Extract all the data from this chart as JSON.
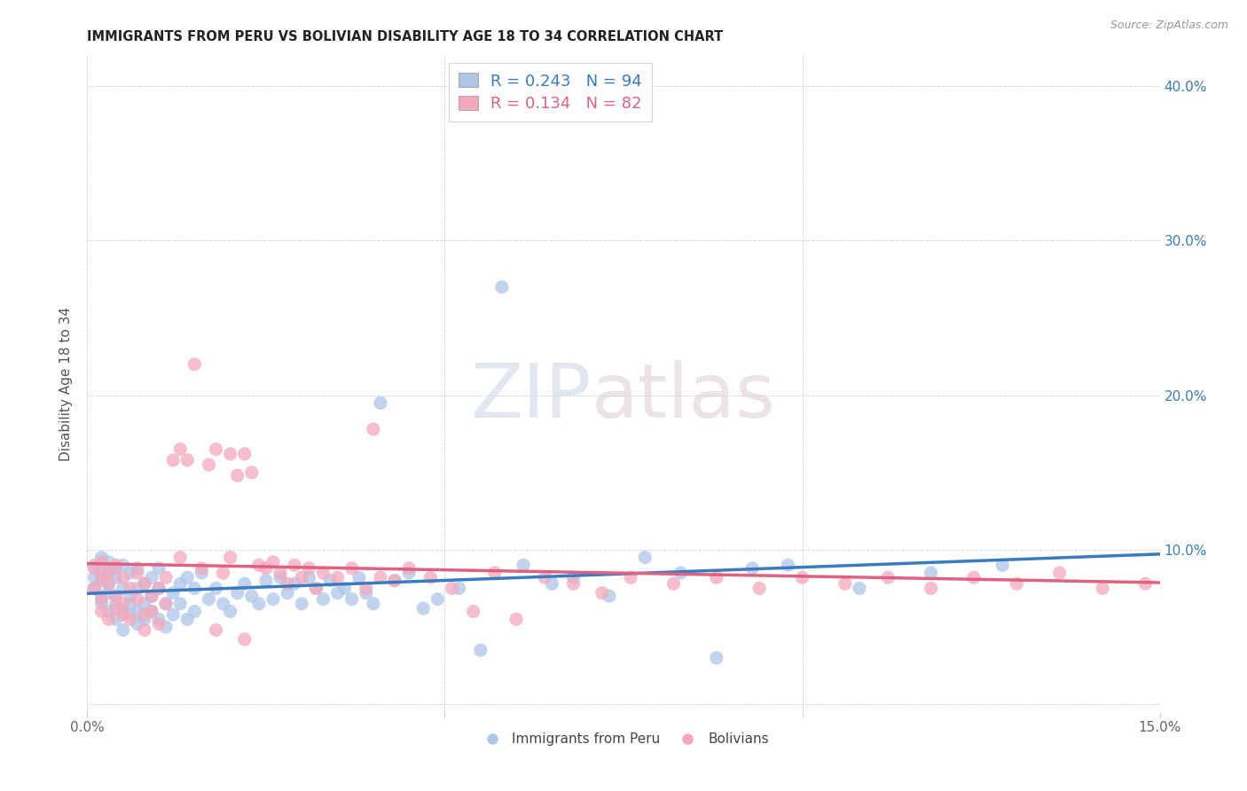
{
  "title": "IMMIGRANTS FROM PERU VS BOLIVIAN DISABILITY AGE 18 TO 34 CORRELATION CHART",
  "source": "Source: ZipAtlas.com",
  "ylabel": "Disability Age 18 to 34",
  "xlim": [
    0.0,
    0.15
  ],
  "ylim": [
    -0.005,
    0.42
  ],
  "peru_R": 0.243,
  "peru_N": 94,
  "bolivia_R": 0.134,
  "bolivia_N": 82,
  "peru_color": "#aec6e8",
  "bolivia_color": "#f4a8bc",
  "peru_line_color": "#3a7abf",
  "bolivia_line_color": "#e06080",
  "watermark_zip": "ZIP",
  "watermark_atlas": "atlas",
  "legend_label_peru": "Immigrants from Peru",
  "legend_label_bolivia": "Bolivians",
  "peru_x": [
    0.001,
    0.001,
    0.001,
    0.002,
    0.002,
    0.002,
    0.002,
    0.002,
    0.003,
    0.003,
    0.003,
    0.003,
    0.003,
    0.004,
    0.004,
    0.004,
    0.004,
    0.004,
    0.005,
    0.005,
    0.005,
    0.005,
    0.006,
    0.006,
    0.006,
    0.006,
    0.007,
    0.007,
    0.007,
    0.007,
    0.008,
    0.008,
    0.008,
    0.009,
    0.009,
    0.009,
    0.01,
    0.01,
    0.01,
    0.011,
    0.011,
    0.012,
    0.012,
    0.013,
    0.013,
    0.014,
    0.014,
    0.015,
    0.015,
    0.016,
    0.017,
    0.018,
    0.019,
    0.02,
    0.021,
    0.022,
    0.023,
    0.024,
    0.025,
    0.026,
    0.027,
    0.028,
    0.029,
    0.03,
    0.031,
    0.032,
    0.033,
    0.034,
    0.035,
    0.036,
    0.037,
    0.038,
    0.039,
    0.04,
    0.041,
    0.043,
    0.045,
    0.047,
    0.049,
    0.052,
    0.055,
    0.058,
    0.061,
    0.065,
    0.068,
    0.073,
    0.078,
    0.083,
    0.088,
    0.093,
    0.098,
    0.108,
    0.118,
    0.128
  ],
  "peru_y": [
    0.09,
    0.075,
    0.082,
    0.088,
    0.07,
    0.095,
    0.065,
    0.08,
    0.085,
    0.072,
    0.078,
    0.06,
    0.092,
    0.065,
    0.088,
    0.07,
    0.055,
    0.082,
    0.06,
    0.09,
    0.075,
    0.048,
    0.065,
    0.085,
    0.07,
    0.058,
    0.075,
    0.06,
    0.088,
    0.052,
    0.065,
    0.078,
    0.055,
    0.07,
    0.082,
    0.06,
    0.075,
    0.055,
    0.088,
    0.065,
    0.05,
    0.072,
    0.058,
    0.078,
    0.065,
    0.055,
    0.082,
    0.06,
    0.075,
    0.085,
    0.068,
    0.075,
    0.065,
    0.06,
    0.072,
    0.078,
    0.07,
    0.065,
    0.08,
    0.068,
    0.082,
    0.072,
    0.078,
    0.065,
    0.082,
    0.075,
    0.068,
    0.08,
    0.072,
    0.075,
    0.068,
    0.082,
    0.072,
    0.065,
    0.195,
    0.08,
    0.085,
    0.062,
    0.068,
    0.075,
    0.035,
    0.27,
    0.09,
    0.078,
    0.082,
    0.07,
    0.095,
    0.085,
    0.03,
    0.088,
    0.09,
    0.075,
    0.085,
    0.09
  ],
  "bolivia_x": [
    0.001,
    0.001,
    0.002,
    0.002,
    0.002,
    0.002,
    0.003,
    0.003,
    0.003,
    0.004,
    0.004,
    0.004,
    0.005,
    0.005,
    0.005,
    0.006,
    0.006,
    0.007,
    0.007,
    0.008,
    0.008,
    0.008,
    0.009,
    0.009,
    0.01,
    0.01,
    0.011,
    0.011,
    0.012,
    0.013,
    0.013,
    0.014,
    0.015,
    0.016,
    0.017,
    0.018,
    0.019,
    0.02,
    0.02,
    0.021,
    0.022,
    0.023,
    0.024,
    0.025,
    0.026,
    0.027,
    0.028,
    0.029,
    0.03,
    0.031,
    0.032,
    0.033,
    0.035,
    0.037,
    0.039,
    0.041,
    0.043,
    0.045,
    0.048,
    0.051,
    0.054,
    0.057,
    0.06,
    0.064,
    0.068,
    0.072,
    0.076,
    0.082,
    0.088,
    0.094,
    0.1,
    0.106,
    0.112,
    0.118,
    0.124,
    0.13,
    0.136,
    0.142,
    0.148,
    0.04,
    0.022,
    0.018
  ],
  "bolivia_y": [
    0.088,
    0.075,
    0.082,
    0.068,
    0.092,
    0.06,
    0.078,
    0.055,
    0.085,
    0.07,
    0.062,
    0.09,
    0.058,
    0.082,
    0.065,
    0.075,
    0.055,
    0.068,
    0.085,
    0.058,
    0.078,
    0.048,
    0.07,
    0.06,
    0.075,
    0.052,
    0.065,
    0.082,
    0.158,
    0.165,
    0.095,
    0.158,
    0.22,
    0.088,
    0.155,
    0.165,
    0.085,
    0.162,
    0.095,
    0.148,
    0.162,
    0.15,
    0.09,
    0.088,
    0.092,
    0.085,
    0.078,
    0.09,
    0.082,
    0.088,
    0.075,
    0.085,
    0.082,
    0.088,
    0.075,
    0.082,
    0.08,
    0.088,
    0.082,
    0.075,
    0.06,
    0.085,
    0.055,
    0.082,
    0.078,
    0.072,
    0.082,
    0.078,
    0.082,
    0.075,
    0.082,
    0.078,
    0.082,
    0.075,
    0.082,
    0.078,
    0.085,
    0.075,
    0.078,
    0.178,
    0.042,
    0.048
  ]
}
